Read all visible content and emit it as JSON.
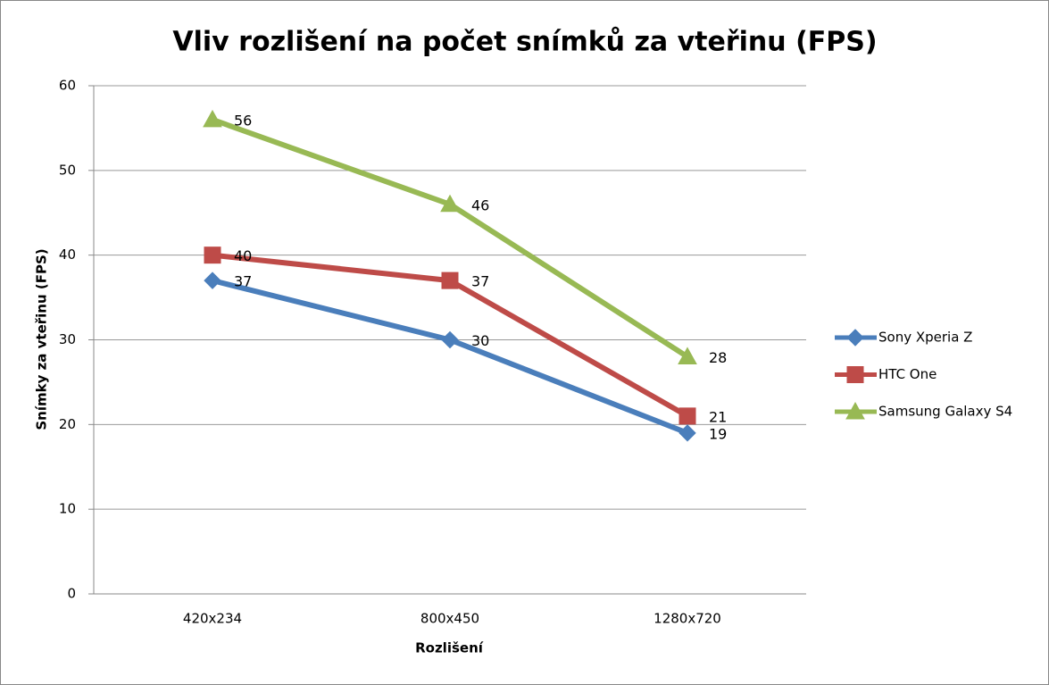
{
  "chart_data": {
    "type": "line",
    "title": "Vliv rozlišení na počet snímků za vteřinu (FPS)",
    "x_label": "Rozlišení",
    "y_label": "Snímky za vteřinu (FPS)",
    "categories": [
      "420x234",
      "800x450",
      "1280x720"
    ],
    "series": [
      {
        "name": "Sony Xperia Z",
        "color": "#4a7ebb",
        "marker": "diamond",
        "values": [
          37,
          30,
          19
        ]
      },
      {
        "name": "HTC One",
        "color": "#be4b48",
        "marker": "square",
        "values": [
          40,
          37,
          21
        ]
      },
      {
        "name": "Samsung Galaxy S4",
        "color": "#98b954",
        "marker": "triangle",
        "values": [
          56,
          46,
          28
        ]
      }
    ],
    "ylim": [
      0,
      60
    ],
    "yticks": [
      0,
      10,
      20,
      30,
      40,
      50,
      60
    ],
    "grid": true,
    "legend": "right",
    "data_labels": true
  }
}
